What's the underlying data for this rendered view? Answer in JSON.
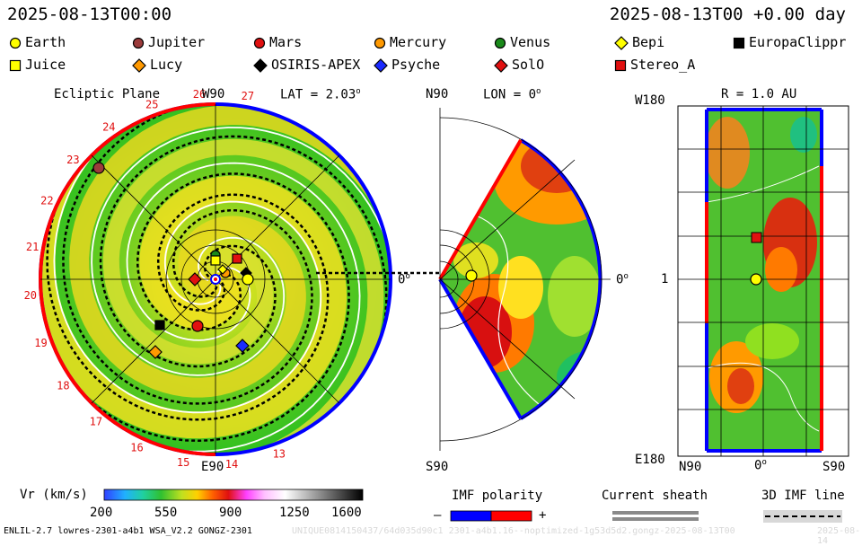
{
  "header": {
    "timestamp_left": "2025-08-13T00:00",
    "timestamp_right": "2025-08-13T00 +0.00 day"
  },
  "legend": {
    "row1": [
      {
        "label": "Earth",
        "shape": "circle",
        "color": "#ffff00"
      },
      {
        "label": "Jupiter",
        "shape": "circle",
        "color": "#9b3b3b"
      },
      {
        "label": "Mars",
        "shape": "circle",
        "color": "#e01010"
      },
      {
        "label": "Mercury",
        "shape": "circle",
        "color": "#ff9900"
      },
      {
        "label": "Venus",
        "shape": "circle",
        "color": "#1a8a1a"
      },
      {
        "label": "Bepi",
        "shape": "diamond",
        "color": "#ffff00"
      },
      {
        "label": "EuropaClippr",
        "shape": "square",
        "color": "#000000"
      }
    ],
    "row2": [
      {
        "label": "Juice",
        "shape": "square",
        "color": "#ffff00"
      },
      {
        "label": "Lucy",
        "shape": "diamond",
        "color": "#ff9900"
      },
      {
        "label": "OSIRIS-APEX",
        "shape": "diamond",
        "color": "#000000"
      },
      {
        "label": "Psyche",
        "shape": "diamond",
        "color": "#1a2aff"
      },
      {
        "label": "SolO",
        "shape": "diamond",
        "color": "#e01010"
      },
      {
        "label": "Stereo_A",
        "shape": "square",
        "color": "#e01010"
      }
    ]
  },
  "panels": {
    "ecliptic": {
      "title": "Ecliptic Plane",
      "top_label": "W90",
      "lat_label": "LAT = 2.03",
      "lat_sup": "o",
      "right_label": "0",
      "right_sup": "o",
      "bottom_label": "E90",
      "left_label": "14",
      "ticks": [
        "13",
        "14",
        "15",
        "16",
        "17",
        "18",
        "19",
        "20",
        "21",
        "22",
        "23",
        "24",
        "25",
        "26",
        "27"
      ]
    },
    "meridional": {
      "top_label": "N90",
      "lon_label": "LON = 0",
      "lon_sup": "o",
      "right_label": "0",
      "right_sup": "o",
      "bottom_label": "S90"
    },
    "sphere": {
      "top_left_label": "W180",
      "r_label": "R = 1.0 AU",
      "mid_left_label": "1",
      "bottom_left_label": "E180",
      "x_labels": [
        "N90",
        "0",
        "S90"
      ],
      "x_mid_sup": "o"
    }
  },
  "colorbar": {
    "title": "Vr (km/s)",
    "ticks": [
      "200",
      "550",
      "900",
      "1250",
      "1600"
    ]
  },
  "imf": {
    "title": "IMF polarity",
    "minus": "–",
    "plus": "+",
    "minus_color": "#0000ff",
    "plus_color": "#ff0000"
  },
  "sheath": {
    "title": "Current sheath"
  },
  "imf3d": {
    "title": "3D IMF line"
  },
  "footer": {
    "model_info": "ENLIL-2.7 lowres-2301-a4b1 WSA_V2.2 GONGZ-2301",
    "run_id": "UNIQUE0814150437/64d035d90c1 2301-a4b1.16--noptimized-1g53d5d2.gongz-2025-08-13T00",
    "date_stamp": "2025-08-14"
  }
}
